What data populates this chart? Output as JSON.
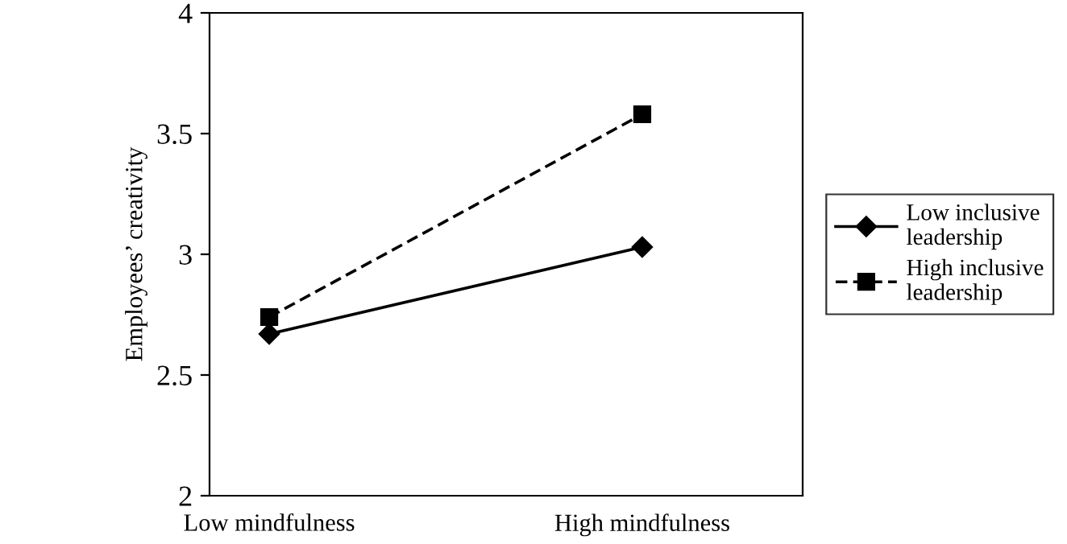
{
  "chart_data": {
    "type": "line",
    "ylabel": "Employees’ creativity",
    "categories": [
      "Low mindfulness",
      "High mindfulness"
    ],
    "series": [
      {
        "name": "Low inclusive\nleadership",
        "color": "#000000",
        "values": [
          2.67,
          3.03
        ],
        "marker": "diamond",
        "line_style": "solid"
      },
      {
        "name": "High inclusive\nleadership",
        "color": "#000000",
        "values": [
          2.74,
          3.58
        ],
        "marker": "square",
        "line_style": "dashed"
      }
    ],
    "ylim": [
      2,
      4
    ],
    "yticks": [
      2,
      2.5,
      3,
      3.5,
      4
    ],
    "grid": false,
    "legend": "right"
  }
}
